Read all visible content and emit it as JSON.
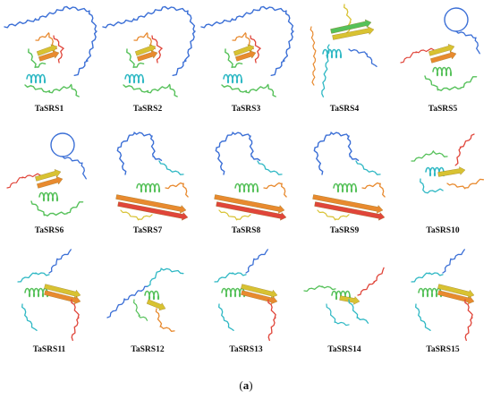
{
  "figure": {
    "panel_label": "(a)",
    "panel_letter": "a",
    "structures": [
      {
        "name": "TaSRS1",
        "style": "tail"
      },
      {
        "name": "TaSRS2",
        "style": "tail"
      },
      {
        "name": "TaSRS3",
        "style": "tail"
      },
      {
        "name": "TaSRS4",
        "style": "vertical"
      },
      {
        "name": "TaSRS5",
        "style": "loop-top"
      },
      {
        "name": "TaSRS6",
        "style": "loop-top"
      },
      {
        "name": "TaSRS7",
        "style": "hook"
      },
      {
        "name": "TaSRS8",
        "style": "hook"
      },
      {
        "name": "TaSRS9",
        "style": "hook"
      },
      {
        "name": "TaSRS10",
        "style": "compact"
      },
      {
        "name": "TaSRS11",
        "style": "strands"
      },
      {
        "name": "TaSRS12",
        "style": "diagonal"
      },
      {
        "name": "TaSRS13",
        "style": "strands"
      },
      {
        "name": "TaSRS14",
        "style": "compact2"
      },
      {
        "name": "TaSRS15",
        "style": "strands"
      }
    ],
    "colors": {
      "blue": "#3b6fd6",
      "cyan": "#2fb8c4",
      "green": "#56c15a",
      "yellow": "#d8c232",
      "orange": "#e88a2f",
      "red": "#e0453a"
    }
  }
}
